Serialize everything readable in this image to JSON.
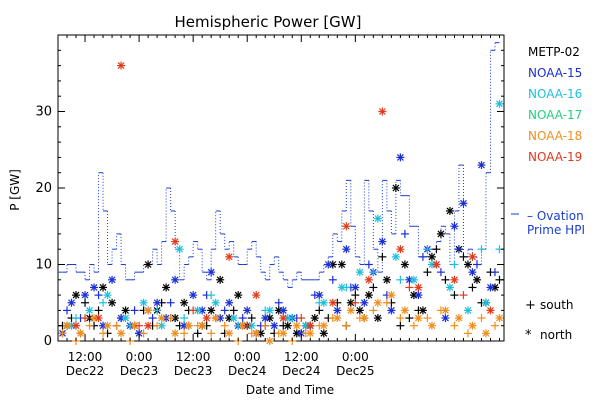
{
  "chart_data": {
    "type": "scatter",
    "title": "Hemispheric Power [GW]",
    "ylabel": "P [GW]",
    "xlabel": "Date and Time",
    "ylim": [
      0,
      40
    ],
    "yticks": [
      0,
      10,
      20,
      30
    ],
    "xlim_hours": [
      0,
      99
    ],
    "xticks": [
      {
        "h": 6,
        "label1": "12:00",
        "label2": "Dec22"
      },
      {
        "h": 18,
        "label1": "0:00",
        "label2": "Dec23"
      },
      {
        "h": 30,
        "label1": "12:00",
        "label2": "Dec23"
      },
      {
        "h": 42,
        "label1": "0:00",
        "label2": "Dec24"
      },
      {
        "h": 54,
        "label1": "12:00",
        "label2": "Dec24"
      },
      {
        "h": 66,
        "label1": "0:00",
        "label2": "Dec25"
      }
    ],
    "grid": false,
    "legend_position": "right",
    "series": [
      {
        "name": "METP-02",
        "color": "#000000"
      },
      {
        "name": "NOAA-15",
        "color": "#1a2fd6"
      },
      {
        "name": "NOAA-16",
        "color": "#1fbfdc"
      },
      {
        "name": "NOAA-17",
        "color": "#21d27a"
      },
      {
        "name": "NOAA-18",
        "color": "#ef8f1f"
      },
      {
        "name": "NOAA-19",
        "color": "#e23a1a"
      }
    ],
    "marker_legend": [
      {
        "symbol": "+",
        "label": "south"
      },
      {
        "symbol": "*",
        "label": "north"
      }
    ],
    "ovation": {
      "label_line1": "– Ovation",
      "label_line2": "Prime HPI",
      "color": "#1a3fd0",
      "step_x": [
        0,
        2,
        4,
        6,
        7,
        8,
        9,
        10,
        11,
        12,
        13,
        14,
        15,
        17,
        19,
        21,
        22,
        23,
        24,
        25,
        26,
        27,
        28,
        29,
        30,
        31,
        32,
        33,
        34,
        35,
        36,
        37,
        38,
        39,
        40,
        41,
        42,
        43,
        44,
        45,
        46,
        47,
        48,
        49,
        50,
        51,
        52,
        53,
        54,
        55,
        56,
        57,
        58,
        59,
        60,
        61,
        62,
        63,
        64,
        65,
        66,
        67,
        68,
        69,
        70,
        71,
        72,
        73,
        74,
        75,
        76,
        78,
        80,
        82,
        84,
        85,
        86,
        87,
        88,
        89,
        90,
        91,
        92,
        93,
        94,
        95,
        96,
        97
      ],
      "step_y": [
        9,
        10,
        9,
        8,
        10,
        9,
        22,
        17,
        10,
        12,
        14,
        10,
        8,
        9,
        10,
        12,
        10,
        13,
        20,
        17,
        12,
        8,
        10,
        11,
        13,
        12,
        9,
        8,
        12,
        17,
        14,
        12,
        13,
        11,
        10,
        10,
        12,
        13,
        11,
        9,
        8,
        10,
        11,
        9,
        8,
        7,
        8,
        9,
        8,
        8,
        8,
        8,
        9,
        10,
        11,
        14,
        13,
        17,
        21,
        15,
        11,
        10,
        21,
        17,
        12,
        9,
        21,
        17,
        14,
        21,
        19,
        15,
        11,
        12,
        13,
        15,
        14,
        10,
        17,
        23,
        11,
        12,
        11,
        10,
        12,
        22,
        38,
        39
      ]
    },
    "points": [
      {
        "s": 0,
        "m": "+",
        "x": [
          1,
          3,
          5,
          6,
          8,
          9,
          11,
          14,
          16,
          18,
          19,
          21,
          23,
          25,
          27,
          29,
          31,
          33,
          35,
          37,
          39,
          41,
          43,
          46,
          48,
          50,
          52,
          54,
          56,
          58,
          60,
          62,
          64,
          66,
          68,
          70,
          72,
          74,
          76,
          78,
          80,
          82,
          84,
          86,
          88,
          90,
          92,
          94,
          96,
          98
        ],
        "y": [
          2,
          3,
          1,
          5,
          2,
          4,
          1,
          3,
          2,
          1,
          4,
          2,
          5,
          3,
          2,
          4,
          1,
          2,
          3,
          1,
          4,
          2,
          3,
          2,
          1,
          2,
          3,
          1,
          2,
          4,
          3,
          5,
          2,
          6,
          3,
          7,
          11,
          5,
          2,
          3,
          4,
          9,
          12,
          8,
          6,
          11,
          7,
          5,
          9,
          8
        ]
      },
      {
        "s": 0,
        "m": "*",
        "x": [
          2,
          4,
          7,
          10,
          12,
          15,
          17,
          20,
          22,
          24,
          26,
          28,
          32,
          34,
          36,
          38,
          40,
          42,
          45,
          47,
          49,
          51,
          53,
          55,
          57,
          59,
          61,
          63,
          65,
          67,
          69,
          71,
          73,
          75,
          77,
          79,
          81,
          83,
          85,
          87,
          89,
          91,
          93,
          95,
          97
        ],
        "y": [
          2,
          6,
          3,
          7,
          5,
          4,
          2,
          10,
          4,
          7,
          3,
          5,
          2,
          4,
          8,
          3,
          6,
          2,
          1,
          3,
          4,
          2,
          1,
          2,
          3,
          1,
          10,
          10,
          5,
          4,
          6,
          3,
          8,
          20,
          10,
          6,
          4,
          11,
          14,
          17,
          12,
          10,
          8,
          5,
          7
        ]
      },
      {
        "s": 1,
        "m": "+",
        "x": [
          2,
          5,
          9,
          13,
          17,
          21,
          25,
          29,
          33,
          37,
          41,
          45,
          49,
          53,
          57,
          61,
          65,
          69,
          73,
          77,
          81,
          85,
          89,
          93,
          97
        ],
        "y": [
          4,
          3,
          6,
          2,
          4,
          3,
          5,
          2,
          6,
          4,
          3,
          2,
          5,
          3,
          6,
          8,
          7,
          10,
          6,
          14,
          11,
          9,
          12,
          10,
          9
        ]
      },
      {
        "s": 1,
        "m": "*",
        "x": [
          1,
          3,
          6,
          8,
          10,
          12,
          14,
          16,
          18,
          20,
          22,
          24,
          26,
          28,
          30,
          32,
          34,
          36,
          38,
          40,
          42,
          44,
          46,
          48,
          50,
          52,
          54,
          56,
          58,
          60,
          62,
          64,
          66,
          68,
          70,
          72,
          74,
          76,
          78,
          80,
          82,
          84,
          86,
          88,
          90,
          92,
          94,
          96
        ],
        "y": [
          1,
          5,
          6,
          7,
          2,
          8,
          3,
          2,
          1,
          4,
          5,
          3,
          8,
          2,
          6,
          4,
          9,
          3,
          5,
          2,
          4,
          1,
          3,
          2,
          4,
          3,
          1,
          2,
          6,
          10,
          4,
          12,
          7,
          5,
          9,
          13,
          4,
          24,
          8,
          6,
          12,
          10,
          3,
          15,
          18,
          9,
          23,
          7
        ]
      },
      {
        "s": 2,
        "m": "+",
        "x": [
          4,
          10,
          16,
          22,
          28,
          34,
          40,
          46,
          52,
          58,
          64,
          70,
          76,
          82,
          88,
          94,
          98
        ],
        "y": [
          3,
          5,
          2,
          4,
          3,
          6,
          2,
          4,
          3,
          5,
          7,
          9,
          8,
          12,
          10,
          12,
          12
        ]
      },
      {
        "s": 2,
        "m": "*",
        "x": [
          3,
          7,
          11,
          15,
          19,
          23,
          27,
          31,
          35,
          39,
          43,
          47,
          51,
          55,
          59,
          63,
          67,
          71,
          75,
          79,
          83,
          87,
          91,
          95,
          98
        ],
        "y": [
          2,
          4,
          6,
          3,
          5,
          2,
          12,
          4,
          5,
          3,
          2,
          4,
          3,
          2,
          5,
          7,
          9,
          16,
          11,
          8,
          10,
          7,
          4,
          5,
          31
        ]
      },
      {
        "s": 4,
        "m": "+",
        "x": [
          1,
          4,
          7,
          10,
          13,
          16,
          19,
          22,
          25,
          28,
          31,
          34,
          37,
          40,
          43,
          46,
          49,
          52,
          55,
          58,
          61,
          64,
          67,
          70,
          73,
          76,
          79,
          82,
          85,
          88,
          91,
          94,
          97
        ],
        "y": [
          1,
          0,
          2,
          1,
          2,
          0,
          1,
          2,
          3,
          1,
          2,
          1,
          2,
          0,
          1,
          2,
          1,
          0,
          1,
          2,
          3,
          2,
          3,
          4,
          5,
          3,
          2,
          3,
          4,
          2,
          1,
          3,
          2
        ]
      },
      {
        "s": 4,
        "m": "*",
        "x": [
          2,
          5,
          8,
          11,
          14,
          17,
          20,
          23,
          26,
          29,
          32,
          35,
          38,
          41,
          44,
          47,
          50,
          53,
          56,
          59,
          62,
          65,
          68,
          71,
          74,
          77,
          80,
          83,
          86,
          89,
          92,
          95,
          98
        ],
        "y": [
          2,
          1,
          3,
          2,
          1,
          2,
          4,
          3,
          1,
          2,
          2,
          3,
          1,
          2,
          1,
          0,
          1,
          2,
          1,
          2,
          3,
          4,
          3,
          5,
          6,
          4,
          3,
          2,
          4,
          3,
          2,
          1,
          3
        ]
      },
      {
        "s": 5,
        "m": "+",
        "x": [
          6,
          18,
          30,
          42,
          54,
          66,
          78,
          90
        ],
        "y": [
          3,
          2,
          4,
          2,
          3,
          5,
          7,
          6
        ]
      },
      {
        "s": 5,
        "m": "*",
        "x": [
          4,
          9,
          14,
          20,
          26,
          33,
          38,
          44,
          50,
          56,
          61,
          64,
          69,
          72,
          76,
          80,
          84,
          88,
          92,
          96
        ],
        "y": [
          2,
          3,
          36,
          2,
          13,
          3,
          11,
          6,
          3,
          2,
          5,
          15,
          8,
          30,
          12,
          7,
          10,
          8,
          11,
          4
        ]
      }
    ]
  }
}
